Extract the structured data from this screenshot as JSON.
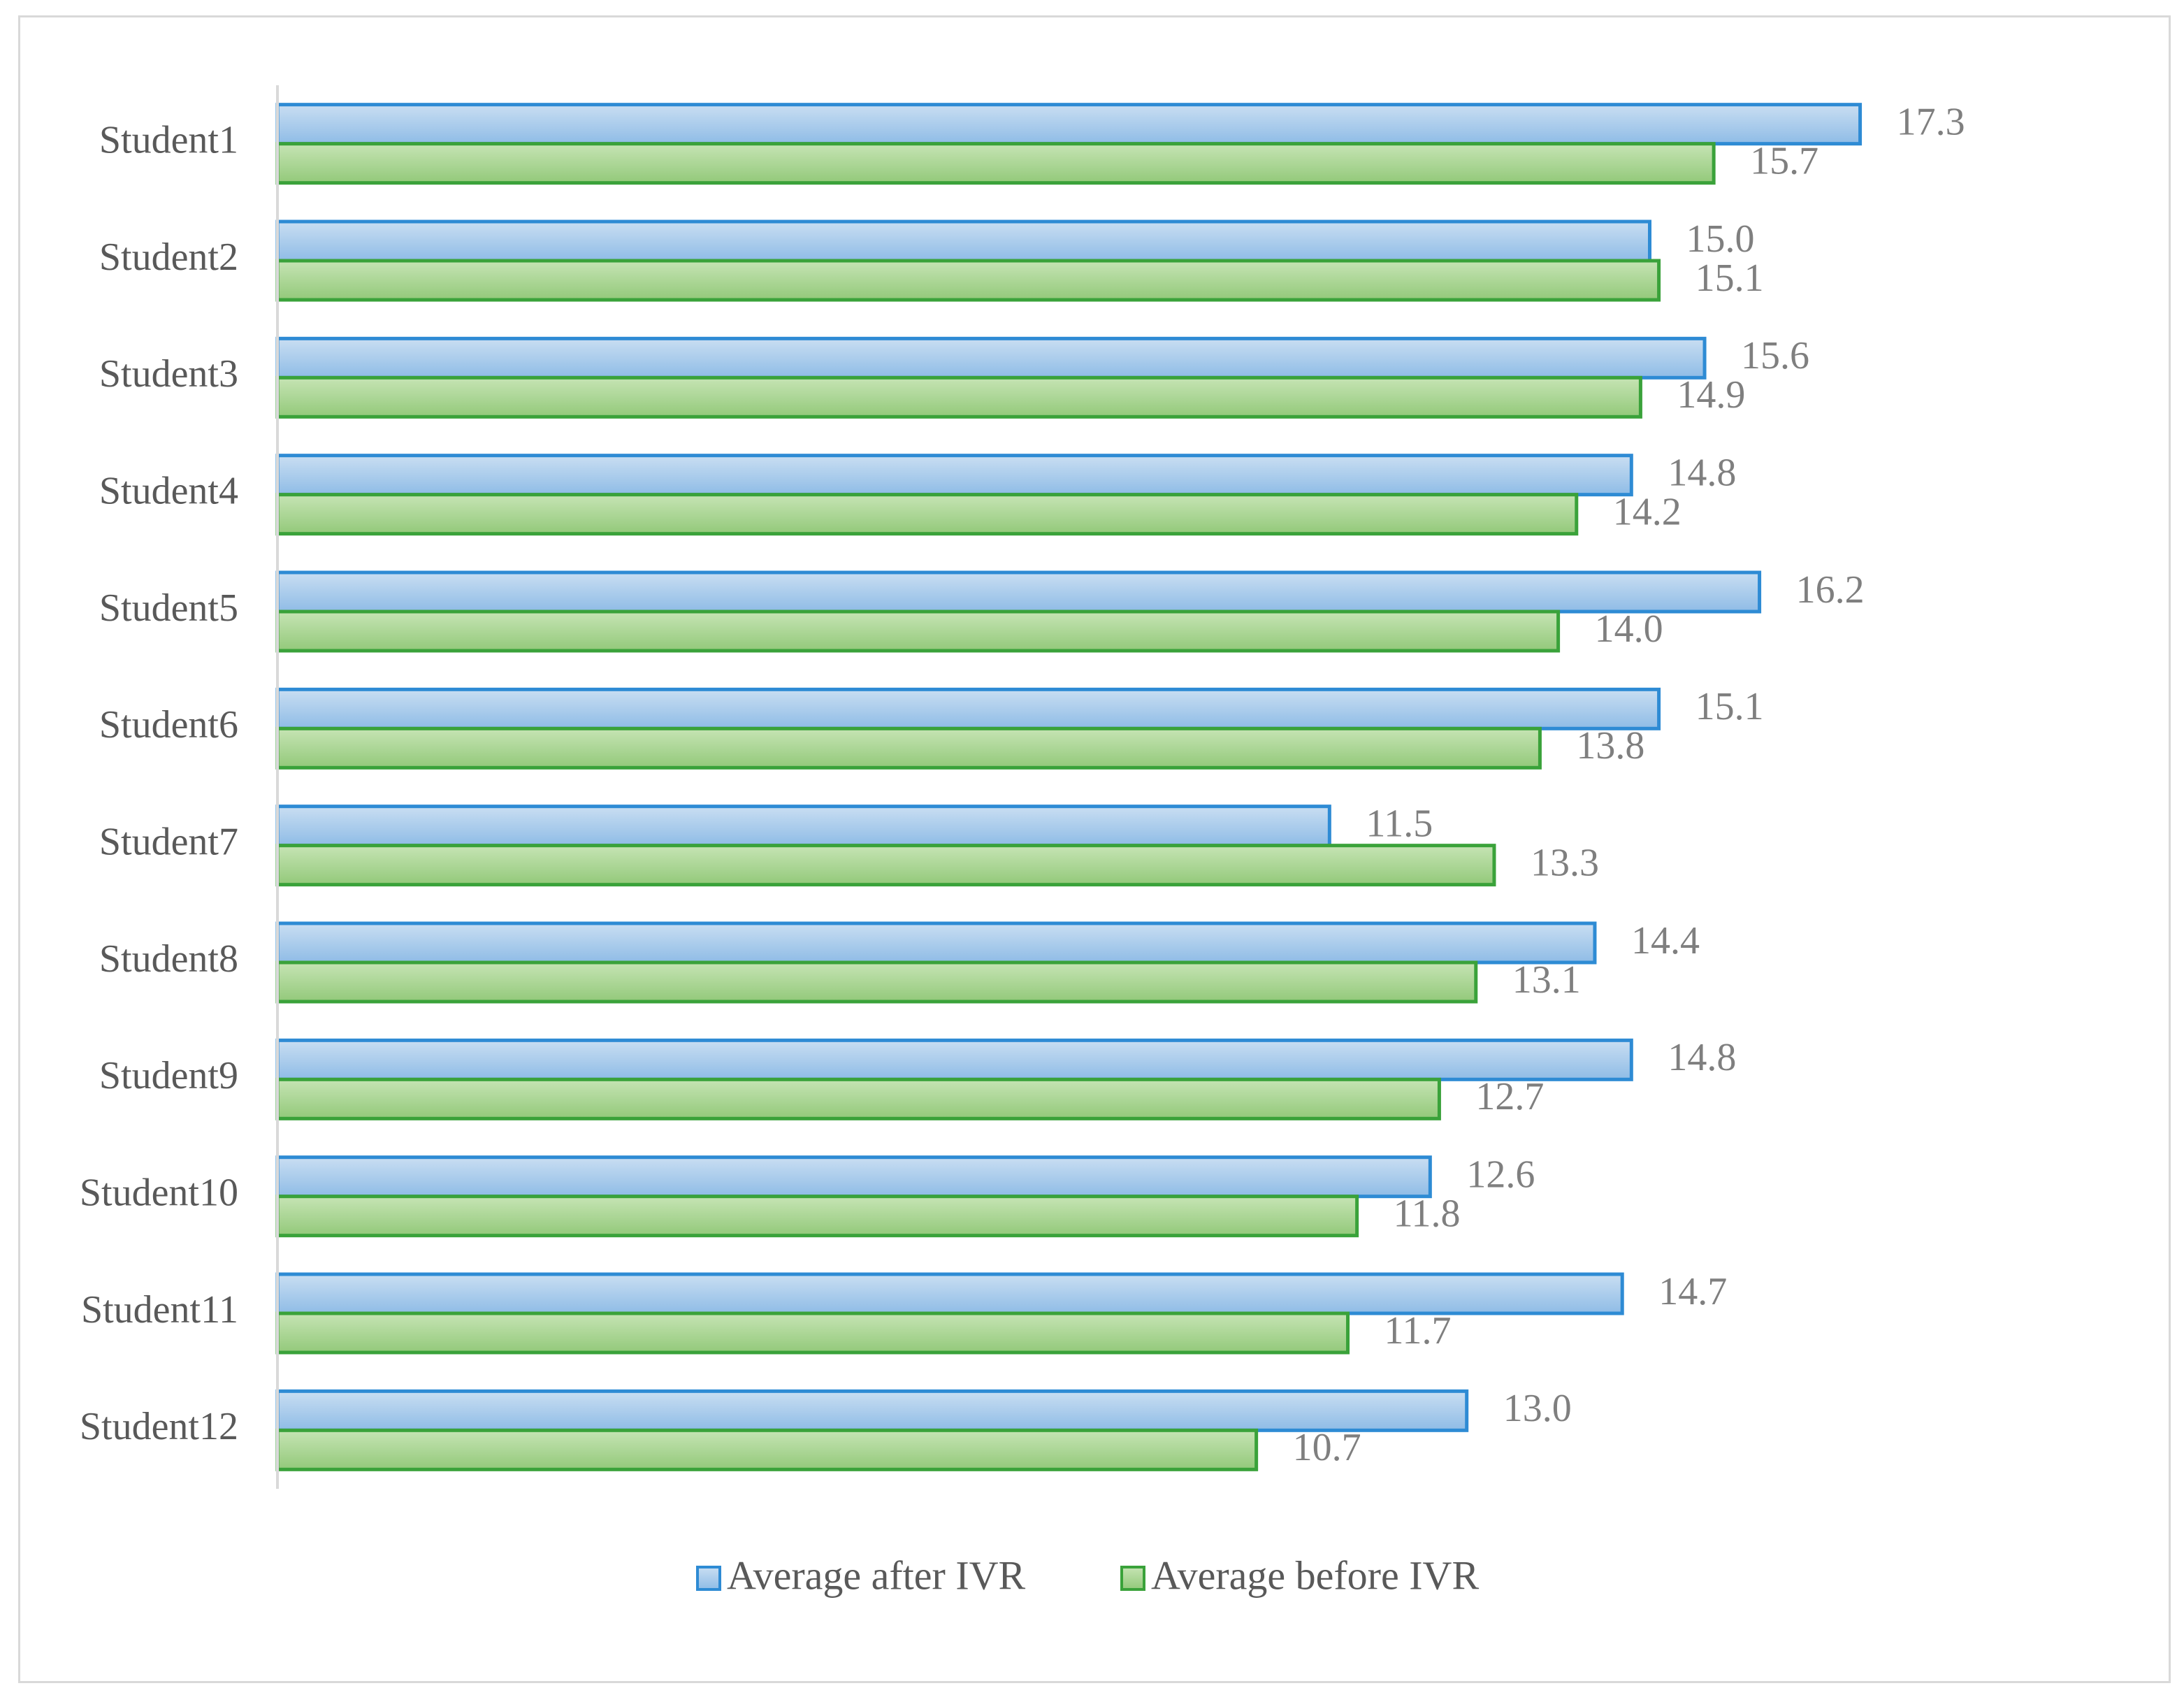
{
  "chart_data": {
    "type": "bar",
    "orientation": "horizontal",
    "title": "",
    "xlabel": "",
    "ylabel": "",
    "xlim": [
      0,
      20
    ],
    "grid": false,
    "legend_position": "bottom",
    "categories": [
      "Student1",
      "Student2",
      "Student3",
      "Student4",
      "Student5",
      "Student6",
      "Student7",
      "Student8",
      "Student9",
      "Student10",
      "Student11",
      "Student12"
    ],
    "series": [
      {
        "name": "Average after IVR",
        "color": "#9dc3e6",
        "edge_color": "#2e8bd4",
        "values": [
          17.3,
          15.0,
          15.6,
          14.8,
          16.2,
          15.1,
          11.5,
          14.4,
          14.8,
          12.6,
          14.7,
          13.0
        ],
        "labels": [
          "17.3",
          "15.0",
          "15.6",
          "14.8",
          "16.2",
          "15.1",
          "11.5",
          "14.4",
          "14.8",
          "12.6",
          "14.7",
          "13.0"
        ]
      },
      {
        "name": "Average before IVR",
        "color": "#a9d18e",
        "edge_color": "#3aa23a",
        "values": [
          15.7,
          15.1,
          14.9,
          14.2,
          14.0,
          13.8,
          13.3,
          13.1,
          12.7,
          11.8,
          11.7,
          10.7
        ],
        "labels": [
          "15.7",
          "15.1",
          "14.9",
          "14.2",
          "14.0",
          "13.8",
          "13.3",
          "13.1",
          "12.7",
          "11.8",
          "11.7",
          "10.7"
        ]
      }
    ]
  }
}
